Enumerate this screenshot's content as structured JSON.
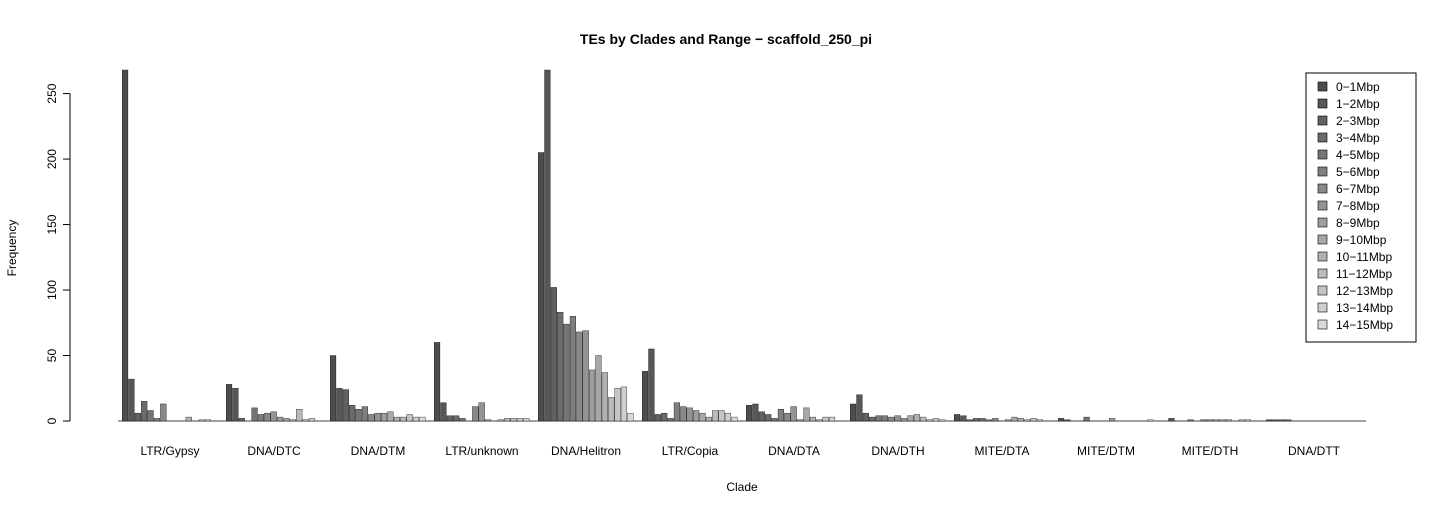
{
  "chart_data": {
    "type": "bar",
    "title": "TEs by Clades and Range − scaffold_250_pi",
    "xlabel": "Clade",
    "ylabel": "Frequency",
    "ylim": [
      0,
      268
    ],
    "yticks": [
      0,
      50,
      100,
      150,
      200,
      250
    ],
    "legend_position": "top-right",
    "categories": [
      "LTR/Gypsy",
      "DNA/DTC",
      "DNA/DTM",
      "LTR/unknown",
      "DNA/Helitron",
      "LTR/Copia",
      "DNA/DTA",
      "DNA/DTH",
      "MITE/DTA",
      "MITE/DTM",
      "MITE/DTH",
      "DNA/DTT"
    ],
    "series": [
      {
        "name": "0−1Mbp",
        "color": "#4d4d4d",
        "values": [
          268,
          28,
          50,
          60,
          205,
          38,
          12,
          13,
          5,
          2,
          0,
          1
        ]
      },
      {
        "name": "1−2Mbp",
        "color": "#575757",
        "values": [
          32,
          25,
          25,
          14,
          268,
          55,
          13,
          20,
          4,
          1,
          2,
          1
        ]
      },
      {
        "name": "2−3Mbp",
        "color": "#616161",
        "values": [
          6,
          2,
          24,
          4,
          102,
          5,
          7,
          6,
          1,
          0,
          0,
          1
        ]
      },
      {
        "name": "3−4Mbp",
        "color": "#6b6b6b",
        "values": [
          15,
          0,
          12,
          4,
          83,
          6,
          5,
          3,
          2,
          0,
          0,
          1
        ]
      },
      {
        "name": "4−5Mbp",
        "color": "#757575",
        "values": [
          8,
          10,
          9,
          2,
          74,
          2,
          2,
          4,
          2,
          3,
          1,
          0
        ]
      },
      {
        "name": "5−6Mbp",
        "color": "#7f7f7f",
        "values": [
          2,
          5,
          11,
          0,
          80,
          14,
          9,
          4,
          1,
          0,
          0,
          0
        ]
      },
      {
        "name": "6−7Mbp",
        "color": "#898989",
        "values": [
          13,
          6,
          5,
          11,
          68,
          11,
          6,
          3,
          2,
          0,
          1,
          0
        ]
      },
      {
        "name": "7−8Mbp",
        "color": "#939393",
        "values": [
          0,
          7,
          6,
          14,
          69,
          10,
          11,
          4,
          0,
          0,
          1,
          0
        ]
      },
      {
        "name": "8−9Mbp",
        "color": "#9d9d9d",
        "values": [
          0,
          3,
          6,
          1,
          39,
          8,
          1,
          2,
          1,
          2,
          1,
          0
        ]
      },
      {
        "name": "9−10Mbp",
        "color": "#a7a7a7",
        "values": [
          0,
          2,
          7,
          0,
          50,
          6,
          10,
          4,
          3,
          0,
          1,
          0
        ]
      },
      {
        "name": "10−11Mbp",
        "color": "#b1b1b1",
        "values": [
          3,
          1,
          3,
          1,
          37,
          3,
          3,
          5,
          2,
          0,
          1,
          0
        ]
      },
      {
        "name": "11−12Mbp",
        "color": "#bbbbbb",
        "values": [
          0,
          9,
          3,
          2,
          18,
          8,
          1,
          3,
          1,
          0,
          0,
          0
        ]
      },
      {
        "name": "12−13Mbp",
        "color": "#c5c5c5",
        "values": [
          1,
          1,
          5,
          2,
          25,
          8,
          3,
          1,
          2,
          0,
          1,
          0
        ]
      },
      {
        "name": "13−14Mbp",
        "color": "#cfcfcf",
        "values": [
          1,
          2,
          3,
          2,
          26,
          6,
          3,
          2,
          1,
          0,
          1,
          0
        ]
      },
      {
        "name": "14−15Mbp",
        "color": "#d9d9d9",
        "values": [
          0,
          0,
          3,
          2,
          6,
          3,
          0,
          1,
          0,
          1,
          0,
          0
        ]
      }
    ]
  }
}
